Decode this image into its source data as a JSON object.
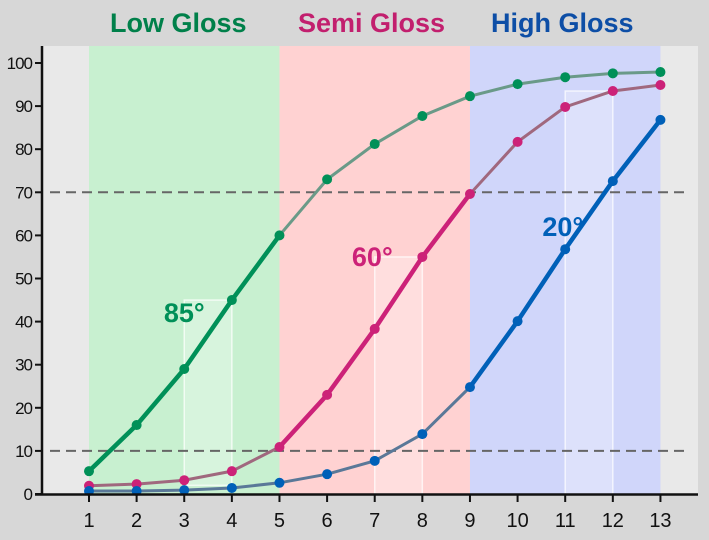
{
  "chart_data": {
    "type": "line",
    "title": "",
    "xlabel": "",
    "ylabel": "",
    "x": [
      1,
      2,
      3,
      4,
      5,
      6,
      7,
      8,
      9,
      10,
      11,
      12,
      13
    ],
    "xlim": [
      0,
      14
    ],
    "ylim": [
      0,
      103
    ],
    "yticks": [
      0,
      10,
      20,
      30,
      40,
      50,
      60,
      70,
      80,
      90,
      100
    ],
    "grid": false,
    "reference_lines": [
      {
        "y": 70,
        "style": "dashed",
        "color": "#666666"
      },
      {
        "y": 10,
        "style": "dashed",
        "color": "#666666"
      }
    ],
    "regions": [
      {
        "label": "Low Gloss",
        "x_start": 1,
        "x_end": 5,
        "fill": "#c8f0d0",
        "label_color": "#00804a"
      },
      {
        "label": "Semi Gloss",
        "x_start": 5,
        "x_end": 9,
        "fill": "#ffd2d2",
        "label_color": "#c21f6e"
      },
      {
        "label": "High Gloss",
        "x_start": 9,
        "x_end": 13,
        "fill": "#d0d6fa",
        "label_color": "#0d4ea6"
      }
    ],
    "highlight_boxes": [
      {
        "x_start": 3,
        "x_end": 4,
        "y_low": 2,
        "y_high": 45
      },
      {
        "x_start": 7,
        "x_end": 8,
        "y_low": 0,
        "y_high": 55
      },
      {
        "x_start": 11,
        "x_end": 12,
        "y_low": 0,
        "y_high": 93.5
      }
    ],
    "series": [
      {
        "name": "85°",
        "color": "#009058",
        "dim_color": "#6a9a88",
        "highlight_range": [
          1,
          5
        ],
        "label_at": [
          3,
          42
        ],
        "values": [
          5.3,
          16,
          29,
          45,
          60,
          73,
          81.2,
          87.7,
          92.3,
          95.1,
          96.7,
          97.6,
          97.9
        ]
      },
      {
        "name": "60°",
        "color": "#cc2278",
        "dim_color": "#a0687e",
        "highlight_range": [
          5,
          9
        ],
        "label_at": [
          6.95,
          55
        ],
        "values": [
          1.9,
          2.3,
          3.2,
          5.3,
          10.9,
          23,
          38.3,
          55,
          69.6,
          81.7,
          89.8,
          93.5,
          94.9
        ]
      },
      {
        "name": "20°",
        "color": "#0060b8",
        "dim_color": "#5a7898",
        "highlight_range": [
          9,
          13
        ],
        "label_at": [
          10.95,
          62
        ],
        "values": [
          0.7,
          0.7,
          0.9,
          1.4,
          2.6,
          4.6,
          7.7,
          13.9,
          24.8,
          40.1,
          56.8,
          72.6,
          86.8
        ]
      }
    ]
  },
  "header": {
    "low_gloss": "Low Gloss",
    "semi_gloss": "Semi Gloss",
    "high_gloss": "High Gloss"
  }
}
